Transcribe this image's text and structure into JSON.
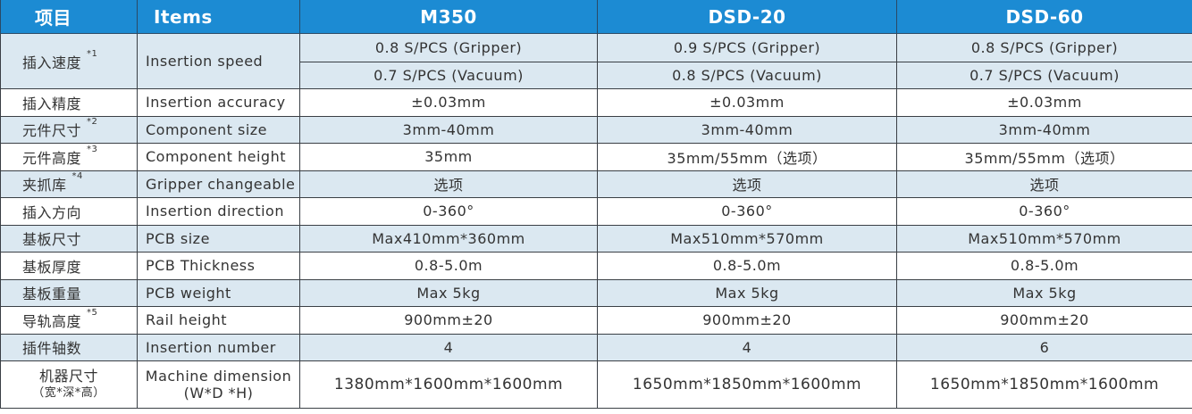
{
  "header": [
    "项目",
    "Items",
    "M350",
    "DSD-20",
    "DSD-60"
  ],
  "speed": {
    "cn": "插入速度",
    "note": "*1",
    "en": "Insertion  speed",
    "gripper": [
      "0.8 S/PCS (Gripper)",
      "0.9 S/PCS (Gripper)",
      "0.8 S/PCS (Gripper)"
    ],
    "vacuum": [
      "0.7 S/PCS (Vacuum)",
      "0.8 S/PCS (Vacuum)",
      "0.7 S/PCS (Vacuum)"
    ]
  },
  "rows": [
    {
      "cn": "插入精度",
      "note": "",
      "en": "Insertion accuracy",
      "values": [
        "±0.03mm",
        "±0.03mm",
        "±0.03mm"
      ]
    },
    {
      "cn": "元件尺寸",
      "note": "*2",
      "en": "Component size",
      "values": [
        "3mm-40mm",
        "3mm-40mm",
        "3mm-40mm"
      ]
    },
    {
      "cn": "元件高度",
      "note": "*3",
      "en": "Component height",
      "values": [
        "35mm",
        "35mm/55mm（选项）",
        "35mm/55mm（选项）"
      ]
    },
    {
      "cn": "夹抓库",
      "note": "*4",
      "en": "Gripper changeable",
      "values": [
        "选项",
        "选项",
        "选项"
      ]
    },
    {
      "cn": "插入方向",
      "note": "",
      "en": "Insertion direction",
      "values": [
        "0-360°",
        "0-360°",
        "0-360°"
      ]
    },
    {
      "cn": "基板尺寸",
      "note": "",
      "en": "PCB size",
      "values": [
        "Max410mm*360mm",
        "Max510mm*570mm",
        "Max510mm*570mm"
      ]
    },
    {
      "cn": "基板厚度",
      "note": "",
      "en": "PCB Thickness",
      "values": [
        "0.8-5.0m",
        "0.8-5.0m",
        "0.8-5.0m"
      ]
    },
    {
      "cn": "基板重量",
      "note": "",
      "en": "PCB weight",
      "values": [
        "Max 5kg",
        "Max 5kg",
        "Max 5kg"
      ]
    },
    {
      "cn": "导轨高度",
      "note": "*5",
      "en": "Rail height",
      "values": [
        "900mm±20",
        "900mm±20",
        "900mm±20"
      ]
    },
    {
      "cn": "插件轴数",
      "note": "",
      "en": "Insertion number",
      "values": [
        "4",
        "4",
        "6"
      ]
    }
  ],
  "machine": {
    "cn": "机器尺寸",
    "cn_sub": "（宽*深*高）",
    "en": "Machine dimension",
    "en_sub": "(W*D *H)",
    "values": [
      "1380mm*1600mm*1600mm",
      "1650mm*1850mm*1600mm",
      "1650mm*1850mm*1600mm"
    ]
  },
  "colors": {
    "header": "#1c8bd3",
    "shade": "#dbe8f1"
  }
}
